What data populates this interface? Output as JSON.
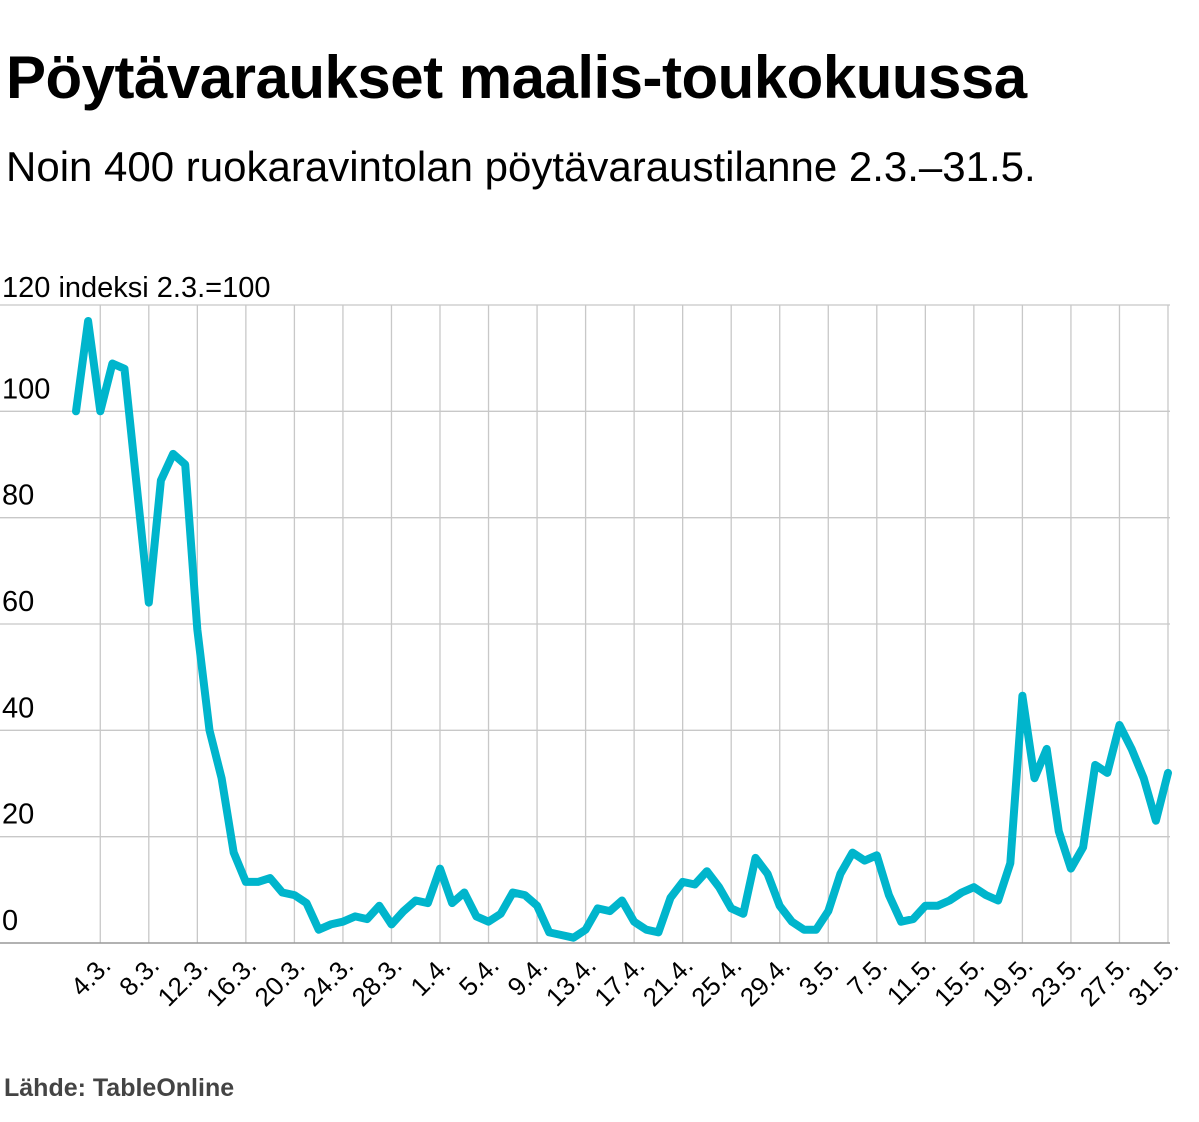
{
  "title": "Pöytävaraukset maalis-toukokuussa",
  "subtitle": "Noin 400 ruokaravintolan pöytävaraustilanne 2.3.–31.5.",
  "source": "Lähde: TableOnline",
  "colors": {
    "line": "#00b5cc",
    "grid": "#c8c8c8",
    "text": "#000000"
  },
  "chart_data": {
    "type": "line",
    "title": "Pöytävaraukset maalis-toukokuussa",
    "subtitle": "Noin 400 ruokaravintolan pöytävaraustilanne 2.3.–31.5.",
    "ylabel": "indeksi 2.3.=100",
    "ylim": [
      0,
      120
    ],
    "yticks": [
      0,
      20,
      40,
      60,
      80,
      100,
      120
    ],
    "ytick_labels": [
      "0",
      "20",
      "40",
      "60",
      "80",
      "100",
      "120"
    ],
    "grid": true,
    "x_tick_labels": [
      "4.3.",
      "8.3.",
      "12.3.",
      "16.3.",
      "20.3.",
      "24.3.",
      "28.3.",
      "1.4.",
      "5.4.",
      "9.4.",
      "13.4.",
      "17.4.",
      "21.4.",
      "25.4.",
      "29.4.",
      "3.5.",
      "7.5.",
      "11.5.",
      "15.5.",
      "19.5.",
      "23.5.",
      "27.5.",
      "31.5."
    ],
    "x": [
      "2.3.",
      "3.3.",
      "4.3.",
      "5.3.",
      "6.3.",
      "7.3.",
      "8.3.",
      "9.3.",
      "10.3.",
      "11.3.",
      "12.3.",
      "13.3.",
      "14.3.",
      "15.3.",
      "16.3.",
      "17.3.",
      "18.3.",
      "19.3.",
      "20.3.",
      "21.3.",
      "22.3.",
      "23.3.",
      "24.3.",
      "25.3.",
      "26.3.",
      "27.3.",
      "28.3.",
      "29.3.",
      "30.3.",
      "31.3.",
      "1.4.",
      "2.4.",
      "3.4.",
      "4.4.",
      "5.4.",
      "6.4.",
      "7.4.",
      "8.4.",
      "9.4.",
      "10.4.",
      "11.4.",
      "12.4.",
      "13.4.",
      "14.4.",
      "15.4.",
      "16.4.",
      "17.4.",
      "18.4.",
      "19.4.",
      "20.4.",
      "21.4.",
      "22.4.",
      "23.4.",
      "24.4.",
      "25.4.",
      "26.4.",
      "27.4.",
      "28.4.",
      "29.4.",
      "30.4.",
      "1.5.",
      "2.5.",
      "3.5.",
      "4.5.",
      "5.5.",
      "6.5.",
      "7.5.",
      "8.5.",
      "9.5.",
      "10.5.",
      "11.5.",
      "12.5.",
      "13.5.",
      "14.5.",
      "15.5.",
      "16.5.",
      "17.5.",
      "18.5.",
      "19.5.",
      "20.5.",
      "21.5.",
      "22.5.",
      "23.5.",
      "24.5.",
      "25.5.",
      "26.5.",
      "27.5.",
      "28.5.",
      "29.5.",
      "30.5.",
      "31.5."
    ],
    "series": [
      {
        "values": [
          100,
          117,
          100,
          109,
          108,
          86,
          64,
          87,
          92,
          90,
          59,
          40,
          31,
          17,
          11.5,
          11.5,
          12.2,
          9.5,
          9,
          7.5,
          2.5,
          3.5,
          4,
          5,
          4.5,
          7,
          3.5,
          6,
          8,
          7.5,
          14,
          7.5,
          9.5,
          5,
          4,
          5.5,
          9.5,
          9,
          7,
          2,
          1.5,
          1,
          2.5,
          6.5,
          6,
          8,
          4,
          2.5,
          2,
          8.5,
          11.5,
          11,
          13.5,
          10.5,
          6.5,
          5.5,
          16,
          13,
          7,
          4,
          2.5,
          2.5,
          6,
          13,
          17,
          15.5,
          16.5,
          9,
          4,
          4.5,
          7,
          7,
          8,
          9.5,
          10.5,
          9,
          8,
          15,
          46.5,
          31,
          36.5,
          21,
          14,
          18,
          33.5,
          32,
          41,
          36.5,
          31,
          23,
          32
        ]
      }
    ]
  }
}
